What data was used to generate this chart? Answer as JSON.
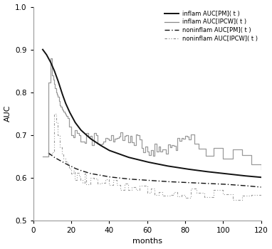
{
  "title": "",
  "xlabel": "months",
  "ylabel": "AUC",
  "xlim": [
    0,
    120
  ],
  "ylim": [
    0.5,
    1.0
  ],
  "xticks": [
    0,
    20,
    40,
    60,
    80,
    100,
    120
  ],
  "yticks": [
    0.5,
    0.6,
    0.7,
    0.8,
    0.9,
    1.0
  ],
  "legend_labels": [
    "inflam AUC[PM]( t )",
    "inflam AUC[IPCW]( t )",
    "noninflam AUC[PM]( t )",
    "noninflam AUC[IPCW]( t )"
  ],
  "inflam_pm_color": "#111111",
  "inflam_ipcw_color": "#888888",
  "noninflam_pm_color": "#111111",
  "noninflam_ipcw_color": "#888888",
  "background_color": "#ffffff",
  "figsize": [
    3.82,
    3.5
  ],
  "dpi": 100,
  "inflam_pm_t": [
    5,
    7,
    9,
    11,
    13,
    15,
    17,
    19,
    22,
    25,
    30,
    35,
    40,
    50,
    60,
    70,
    80,
    90,
    100,
    110,
    120
  ],
  "inflam_pm_y": [
    0.9,
    0.888,
    0.872,
    0.852,
    0.828,
    0.8,
    0.775,
    0.755,
    0.73,
    0.712,
    0.692,
    0.677,
    0.664,
    0.648,
    0.637,
    0.628,
    0.621,
    0.615,
    0.61,
    0.605,
    0.601
  ],
  "noninflam_pm_t": [
    8,
    11,
    13,
    15,
    17,
    19,
    22,
    25,
    30,
    40,
    50,
    60,
    70,
    80,
    90,
    100,
    110,
    120
  ],
  "noninflam_pm_y": [
    0.658,
    0.648,
    0.643,
    0.638,
    0.633,
    0.629,
    0.622,
    0.617,
    0.61,
    0.602,
    0.597,
    0.594,
    0.591,
    0.589,
    0.587,
    0.585,
    0.582,
    0.578
  ]
}
